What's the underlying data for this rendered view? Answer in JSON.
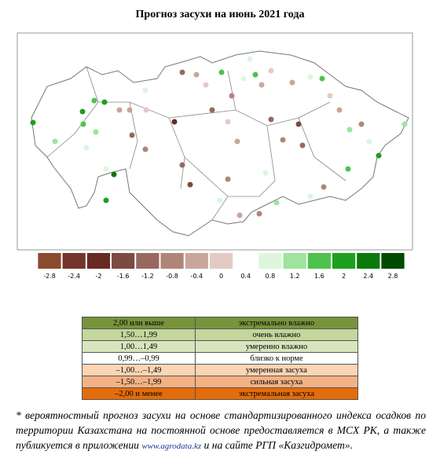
{
  "title": "Прогноз засухи на июнь 2021 года",
  "colorbar": {
    "lim": [
      -3,
      3
    ],
    "ticks": [
      -2.8,
      -2.4,
      -2,
      -1.6,
      -1.2,
      -0.8,
      -0.4,
      0,
      0.4,
      0.8,
      1.2,
      1.6,
      2,
      2.4,
      2.8
    ],
    "colors": [
      "#8a4a2e",
      "#74352a",
      "#6a2a24",
      "#7c4a42",
      "#98685f",
      "#b08579",
      "#c9a69c",
      "#e3cbc3",
      "#ffffff",
      "#dcf7dc",
      "#9ee39e",
      "#4dc24d",
      "#1f9f1f",
      "#0b7a0b",
      "#024a02"
    ]
  },
  "legend_table": {
    "rows": [
      [
        "2,00 или выше",
        "экстремально влажно"
      ],
      [
        "1,50…1,99",
        "очень влажно"
      ],
      [
        "1,00…1,49",
        "умеренно влажно"
      ],
      [
        "0,99…–0,99",
        "близко к норме"
      ],
      [
        "–1,00…–1,49",
        "умеренная засуха"
      ],
      [
        "–1,50…–1,99",
        "сильная засуха"
      ],
      [
        "–2,00 и менее",
        "экстремальная засуха"
      ]
    ],
    "colors": [
      "#77933c",
      "#c3d69b",
      "#d7e4bd",
      "#ffffff",
      "#fcd5b4",
      "#f4b183",
      "#e46c0a"
    ]
  },
  "footnote": {
    "text": "* вероятностный прогноз засухи на основе стандартизированного индекса осадков по территории Казахстана на постоянной основе предоставляется в МСХ РК, а также публикуется в приложении ",
    "link": "www.agrodata.kz",
    "tail": " и на сайте РГП «Казгидромет»."
  }
}
